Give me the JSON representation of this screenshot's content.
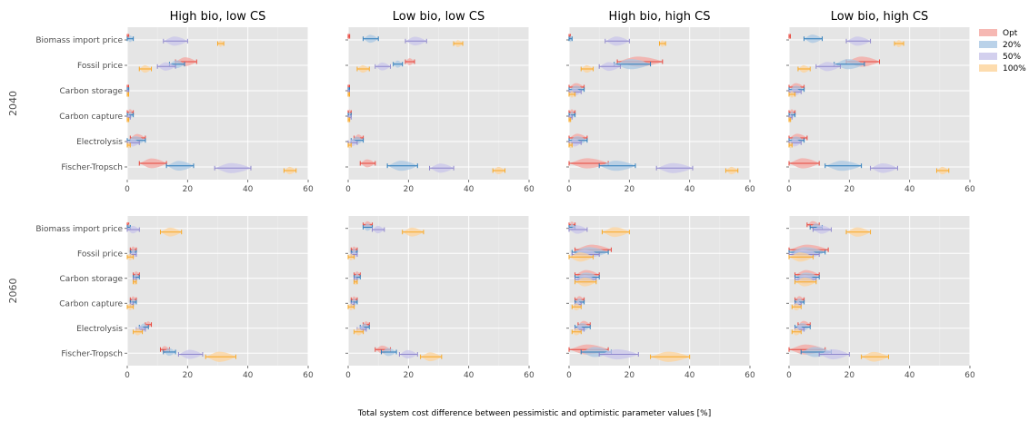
{
  "chart_data": {
    "type": "violin",
    "xlabel": "Total system cost difference between pessimistic and optimistic parameter values [%]",
    "xlim": [
      0,
      60
    ],
    "xticks": [
      0,
      20,
      40,
      60
    ],
    "grid": true,
    "legend_placement": "right",
    "columns": [
      "High bio, low CS",
      "Low bio, low CS",
      "High bio, high CS",
      "Low bio, high CS"
    ],
    "rows": [
      "2040",
      "2060"
    ],
    "categories": [
      "Biomass import price",
      "Fossil price",
      "Carbon storage",
      "Carbon capture",
      "Electrolysis",
      "Fischer-Tropsch"
    ],
    "series": [
      {
        "name": "Opt",
        "color": "#f4a6a0",
        "line_color": "#e8463c"
      },
      {
        "name": "20%",
        "color": "#a9c7e3",
        "line_color": "#2b7bba"
      },
      {
        "name": "50%",
        "color": "#c8c4ea",
        "line_color": "#8e86cc"
      },
      {
        "name": "100%",
        "color": "#fdd39a",
        "line_color": "#f9a825"
      }
    ],
    "panels": [
      [
        [
          [
            0,
            0.5
          ],
          [
            0,
            2
          ],
          [
            12,
            20
          ],
          [
            30,
            32
          ]
        ],
        [
          [
            16,
            23
          ],
          [
            14,
            19
          ],
          [
            10,
            16
          ],
          [
            4,
            8
          ]
        ],
        [
          [
            0,
            0.3
          ],
          [
            0,
            0.5
          ],
          [
            0,
            0.3
          ],
          [
            0,
            0.3
          ]
        ],
        [
          [
            0,
            2
          ],
          [
            0,
            2
          ],
          [
            0,
            1
          ],
          [
            0,
            0.5
          ]
        ],
        [
          [
            1,
            6
          ],
          [
            0,
            6
          ],
          [
            0,
            4
          ],
          [
            0,
            1
          ]
        ],
        [
          [
            4,
            13
          ],
          [
            13,
            22
          ],
          [
            29,
            41
          ],
          [
            52,
            56
          ]
        ]
      ],
      [
        [
          [
            0,
            0.5
          ],
          [
            5,
            10
          ],
          [
            19,
            26
          ],
          [
            35,
            38
          ]
        ],
        [
          [
            19,
            22
          ],
          [
            15,
            18
          ],
          [
            9,
            14
          ],
          [
            3,
            7
          ]
        ],
        [
          [
            0,
            0.3
          ],
          [
            0,
            0.3
          ],
          [
            0,
            0.3
          ],
          [
            0,
            0.3
          ]
        ],
        [
          [
            0,
            1
          ],
          [
            0,
            1
          ],
          [
            0,
            1
          ],
          [
            0,
            0.5
          ]
        ],
        [
          [
            2,
            5
          ],
          [
            1,
            5
          ],
          [
            0,
            3
          ],
          [
            0,
            1
          ]
        ],
        [
          [
            4,
            9
          ],
          [
            13,
            23
          ],
          [
            27,
            35
          ],
          [
            48,
            52
          ]
        ]
      ],
      [
        [
          [
            0,
            0.3
          ],
          [
            0,
            1
          ],
          [
            12,
            20
          ],
          [
            30,
            32
          ]
        ],
        [
          [
            16,
            31
          ],
          [
            15,
            27
          ],
          [
            10,
            17
          ],
          [
            4,
            8
          ]
        ],
        [
          [
            0,
            5
          ],
          [
            0,
            5
          ],
          [
            0,
            4
          ],
          [
            0,
            2
          ]
        ],
        [
          [
            0,
            2
          ],
          [
            0,
            2
          ],
          [
            0,
            1
          ],
          [
            0,
            0.5
          ]
        ],
        [
          [
            0,
            6
          ],
          [
            0,
            6
          ],
          [
            0,
            4
          ],
          [
            0,
            1
          ]
        ],
        [
          [
            0,
            13
          ],
          [
            10,
            22
          ],
          [
            29,
            41
          ],
          [
            52,
            56
          ]
        ]
      ],
      [
        [
          [
            0,
            0.3
          ],
          [
            5,
            11
          ],
          [
            19,
            27
          ],
          [
            35,
            38
          ]
        ],
        [
          [
            19,
            30
          ],
          [
            15,
            25
          ],
          [
            9,
            17
          ],
          [
            3,
            7
          ]
        ],
        [
          [
            0,
            5
          ],
          [
            0,
            5
          ],
          [
            0,
            4
          ],
          [
            0,
            2
          ]
        ],
        [
          [
            0,
            2
          ],
          [
            0,
            2
          ],
          [
            0,
            1
          ],
          [
            0,
            0.5
          ]
        ],
        [
          [
            0,
            6
          ],
          [
            0,
            5
          ],
          [
            0,
            4
          ],
          [
            0,
            1
          ]
        ],
        [
          [
            0,
            10
          ],
          [
            12,
            24
          ],
          [
            27,
            36
          ],
          [
            49,
            53
          ]
        ]
      ],
      [
        [
          [
            0,
            0.5
          ],
          [
            0,
            1
          ],
          [
            0,
            4
          ],
          [
            11,
            18
          ]
        ],
        [
          [
            1,
            3
          ],
          [
            1,
            3
          ],
          [
            1,
            3
          ],
          [
            0,
            2
          ]
        ],
        [
          [
            2,
            4
          ],
          [
            2,
            4
          ],
          [
            2,
            3
          ],
          [
            2,
            3
          ]
        ],
        [
          [
            1,
            3
          ],
          [
            1,
            3
          ],
          [
            1,
            2
          ],
          [
            0,
            2
          ]
        ],
        [
          [
            6,
            8
          ],
          [
            4,
            7
          ],
          [
            3,
            6
          ],
          [
            2,
            5
          ]
        ],
        [
          [
            11,
            14
          ],
          [
            12,
            16
          ],
          [
            17,
            25
          ],
          [
            26,
            36
          ]
        ]
      ],
      [
        [
          [
            5,
            8
          ],
          [
            5,
            8
          ],
          [
            8,
            12
          ],
          [
            18,
            25
          ]
        ],
        [
          [
            1,
            3
          ],
          [
            1,
            3
          ],
          [
            1,
            3
          ],
          [
            0,
            2
          ]
        ],
        [
          [
            2,
            4
          ],
          [
            2,
            4
          ],
          [
            2,
            3
          ],
          [
            2,
            3
          ]
        ],
        [
          [
            1,
            3
          ],
          [
            1,
            3
          ],
          [
            1,
            2
          ],
          [
            0,
            2
          ]
        ],
        [
          [
            5,
            7
          ],
          [
            4,
            7
          ],
          [
            3,
            6
          ],
          [
            2,
            5
          ]
        ],
        [
          [
            9,
            14
          ],
          [
            11,
            16
          ],
          [
            17,
            23
          ],
          [
            24,
            31
          ]
        ]
      ],
      [
        [
          [
            0,
            2
          ],
          [
            0,
            2
          ],
          [
            0,
            6
          ],
          [
            11,
            20
          ]
        ],
        [
          [
            2,
            14
          ],
          [
            1,
            13
          ],
          [
            1,
            10
          ],
          [
            0,
            8
          ]
        ],
        [
          [
            2,
            10
          ],
          [
            2,
            10
          ],
          [
            2,
            9
          ],
          [
            2,
            9
          ]
        ],
        [
          [
            2,
            5
          ],
          [
            2,
            5
          ],
          [
            2,
            4
          ],
          [
            1,
            4
          ]
        ],
        [
          [
            3,
            7
          ],
          [
            2,
            7
          ],
          [
            2,
            5
          ],
          [
            1,
            4
          ]
        ],
        [
          [
            0,
            13
          ],
          [
            4,
            14
          ],
          [
            10,
            23
          ],
          [
            27,
            40
          ]
        ]
      ],
      [
        [
          [
            6,
            10
          ],
          [
            7,
            11
          ],
          [
            8,
            14
          ],
          [
            19,
            27
          ]
        ],
        [
          [
            0,
            13
          ],
          [
            0,
            12
          ],
          [
            0,
            10
          ],
          [
            0,
            8
          ]
        ],
        [
          [
            2,
            10
          ],
          [
            2,
            10
          ],
          [
            2,
            9
          ],
          [
            2,
            9
          ]
        ],
        [
          [
            2,
            5
          ],
          [
            2,
            5
          ],
          [
            2,
            4
          ],
          [
            1,
            4
          ]
        ],
        [
          [
            3,
            7
          ],
          [
            2,
            7
          ],
          [
            2,
            5
          ],
          [
            1,
            4
          ]
        ],
        [
          [
            0,
            12
          ],
          [
            4,
            14
          ],
          [
            10,
            20
          ],
          [
            24,
            33
          ]
        ]
      ]
    ]
  }
}
